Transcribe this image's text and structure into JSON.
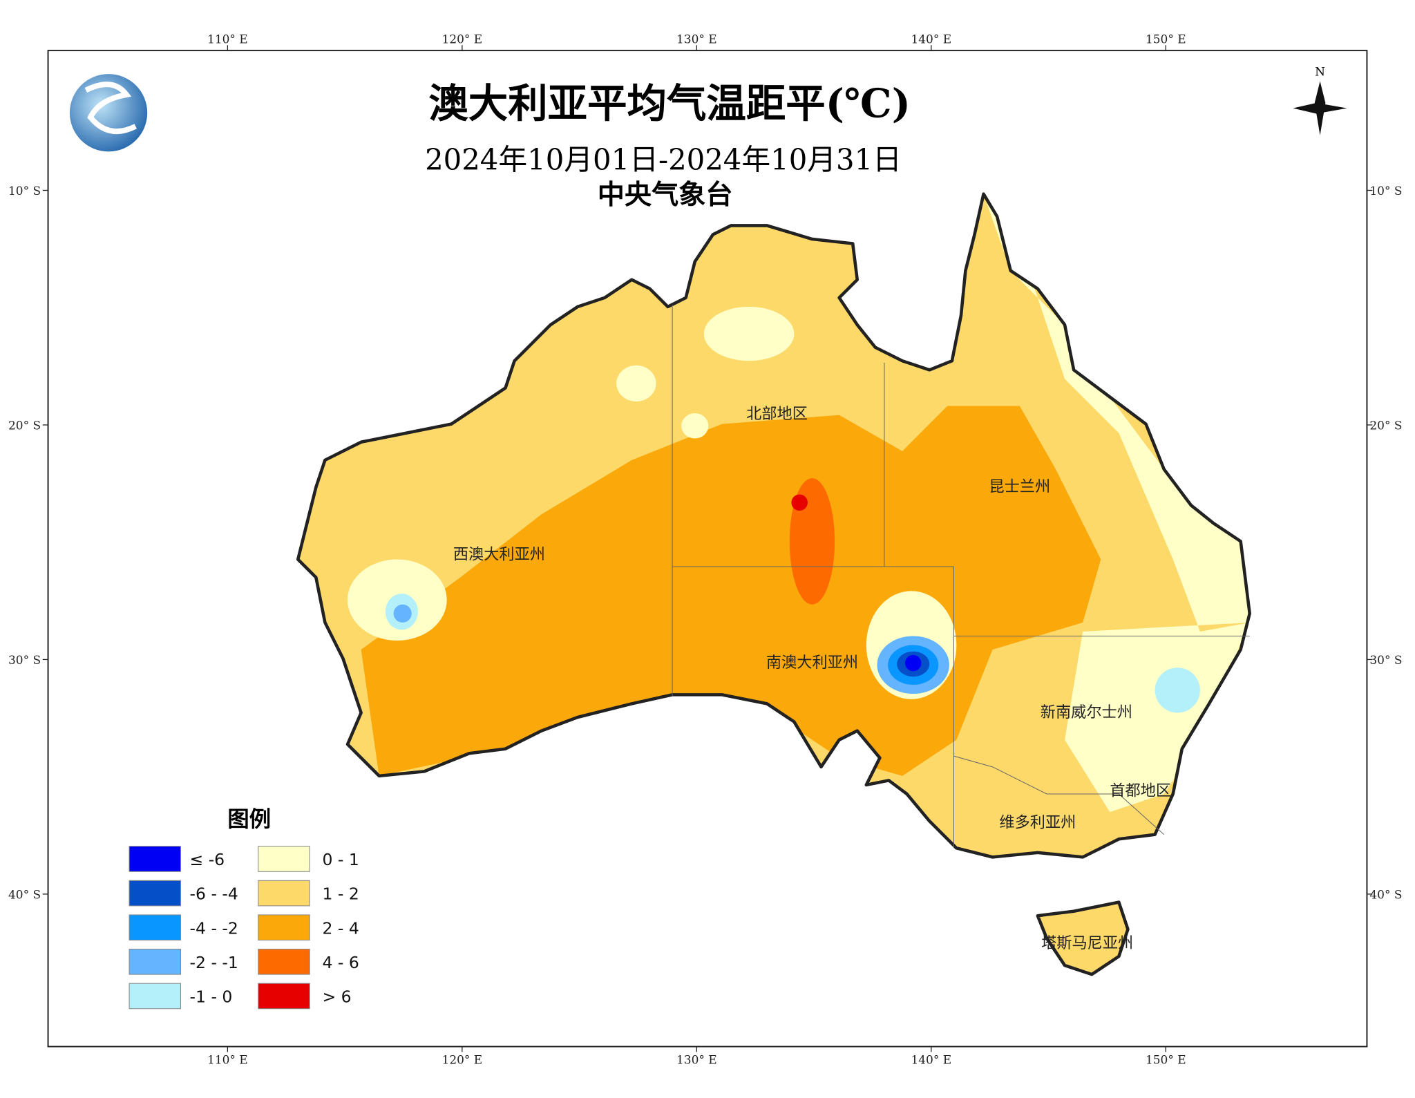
{
  "header": {
    "title": "澳大利亚平均气温距平(℃)",
    "period": "2024年10月01日-2024年10月31日",
    "agency": "中央气象台"
  },
  "compass": "N",
  "graticule": {
    "lon": [
      {
        "value": 110,
        "label": "110° E"
      },
      {
        "value": 120,
        "label": "120° E"
      },
      {
        "value": 130,
        "label": "130° E"
      },
      {
        "value": 140,
        "label": "140° E"
      },
      {
        "value": 150,
        "label": "150° E"
      }
    ],
    "lat": [
      {
        "value": 10,
        "label": "10° S"
      },
      {
        "value": 20,
        "label": "20° S"
      },
      {
        "value": 30,
        "label": "30° S"
      },
      {
        "value": 40,
        "label": "40° S"
      }
    ]
  },
  "regions": [
    "北部地区",
    "昆士兰州",
    "西澳大利亚州",
    "南澳大利亚州",
    "新南威尔士州",
    "首都地区",
    "维多利亚州",
    "塔斯马尼亚州"
  ],
  "legend": {
    "title": "图例",
    "items": [
      {
        "label": "≤ -6",
        "color": "#0000f5"
      },
      {
        "label": "-6 - -4",
        "color": "#0550c8"
      },
      {
        "label": "-4 - -2",
        "color": "#0a96ff"
      },
      {
        "label": "-2 - -1",
        "color": "#64b4ff"
      },
      {
        "label": "-1 - 0",
        "color": "#b4f0fa"
      },
      {
        "label": "0 - 1",
        "color": "#ffffc8"
      },
      {
        "label": "1 - 2",
        "color": "#fdd96a"
      },
      {
        "label": "2 - 4",
        "color": "#fba80a"
      },
      {
        "label": "4 - 6",
        "color": "#fd6a00"
      },
      {
        "label": "> 6",
        "color": "#e60000"
      }
    ]
  }
}
